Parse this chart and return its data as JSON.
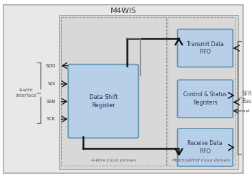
{
  "title": "M4WIS",
  "box_fill": "#b8cfe8",
  "box_edge": "#6090b0",
  "outer_fill": "#e8e8e8",
  "inner_fill": "#d8d8d8",
  "arrow_color": "#111111",
  "brace_color": "#666666",
  "text_color": "#333333",
  "label_color": "#555555",
  "left_domain_label": "4-Wire Clock domain",
  "right_domain_label": "M8051W/EW Clock domain",
  "sfr_label": "SFR\nBus",
  "interface_label": "4-wire\ninterface",
  "signals": [
    "SDO",
    "SDI",
    "SSN",
    "SCK"
  ]
}
